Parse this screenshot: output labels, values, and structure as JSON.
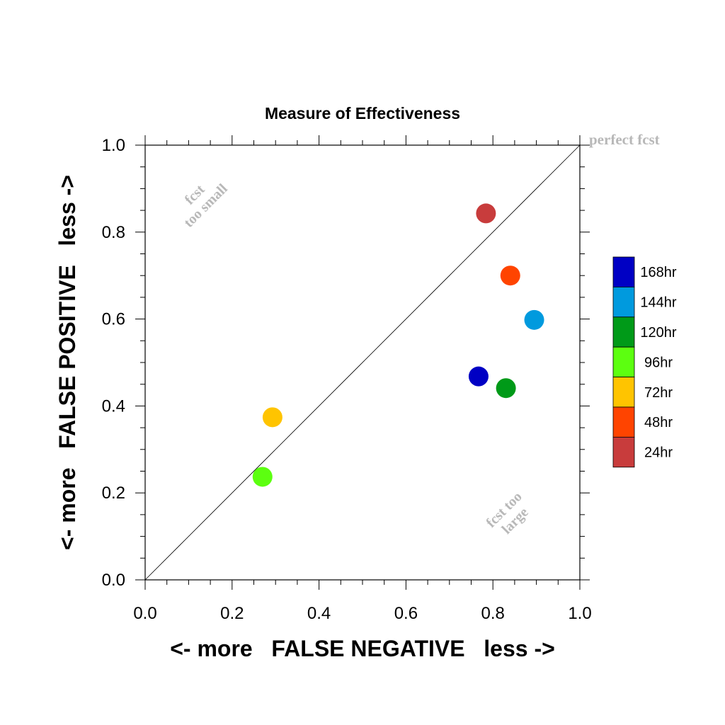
{
  "chart_data": {
    "type": "scatter",
    "title": "Measure of Effectiveness",
    "xlabel": "<- more   FALSE NEGATIVE   less ->",
    "ylabel": "<- more   FALSE POSITIVE   less ->",
    "xlim": [
      0,
      1
    ],
    "ylim": [
      0,
      1
    ],
    "xticks": [
      "0.0",
      "0.2",
      "0.4",
      "0.6",
      "0.8",
      "1.0"
    ],
    "yticks": [
      "0.0",
      "0.2",
      "0.4",
      "0.6",
      "0.8",
      "1.0"
    ],
    "grid": false,
    "reference_line": {
      "from": [
        0,
        0
      ],
      "to": [
        1,
        1
      ]
    },
    "annotations": {
      "perfect": "perfect fcst",
      "small_line1": "fcst",
      "small_line2": "too small",
      "large_line1": "fcst too",
      "large_line2": "large"
    },
    "legend": {
      "placement": "right",
      "entries": [
        {
          "label": "168hr",
          "color": "#0000c4"
        },
        {
          "label": "144hr",
          "color": "#009ade"
        },
        {
          "label": "120hr",
          "color": "#009a18"
        },
        {
          "label": "96hr",
          "color": "#5cff10"
        },
        {
          "label": "72hr",
          "color": "#ffc400"
        },
        {
          "label": "48hr",
          "color": "#ff4400"
        },
        {
          "label": "24hr",
          "color": "#c83c3c"
        }
      ]
    },
    "points": [
      {
        "label": "24hr",
        "x": 0.784,
        "y": 0.843,
        "color": "#c83c3c"
      },
      {
        "label": "48hr",
        "x": 0.84,
        "y": 0.7,
        "color": "#ff4400"
      },
      {
        "label": "72hr",
        "x": 0.293,
        "y": 0.374,
        "color": "#ffc400"
      },
      {
        "label": "96hr",
        "x": 0.27,
        "y": 0.237,
        "color": "#5cff10"
      },
      {
        "label": "120hr",
        "x": 0.83,
        "y": 0.441,
        "color": "#009a18"
      },
      {
        "label": "144hr",
        "x": 0.895,
        "y": 0.598,
        "color": "#009ade"
      },
      {
        "label": "168hr",
        "x": 0.767,
        "y": 0.468,
        "color": "#0000c4"
      }
    ]
  }
}
